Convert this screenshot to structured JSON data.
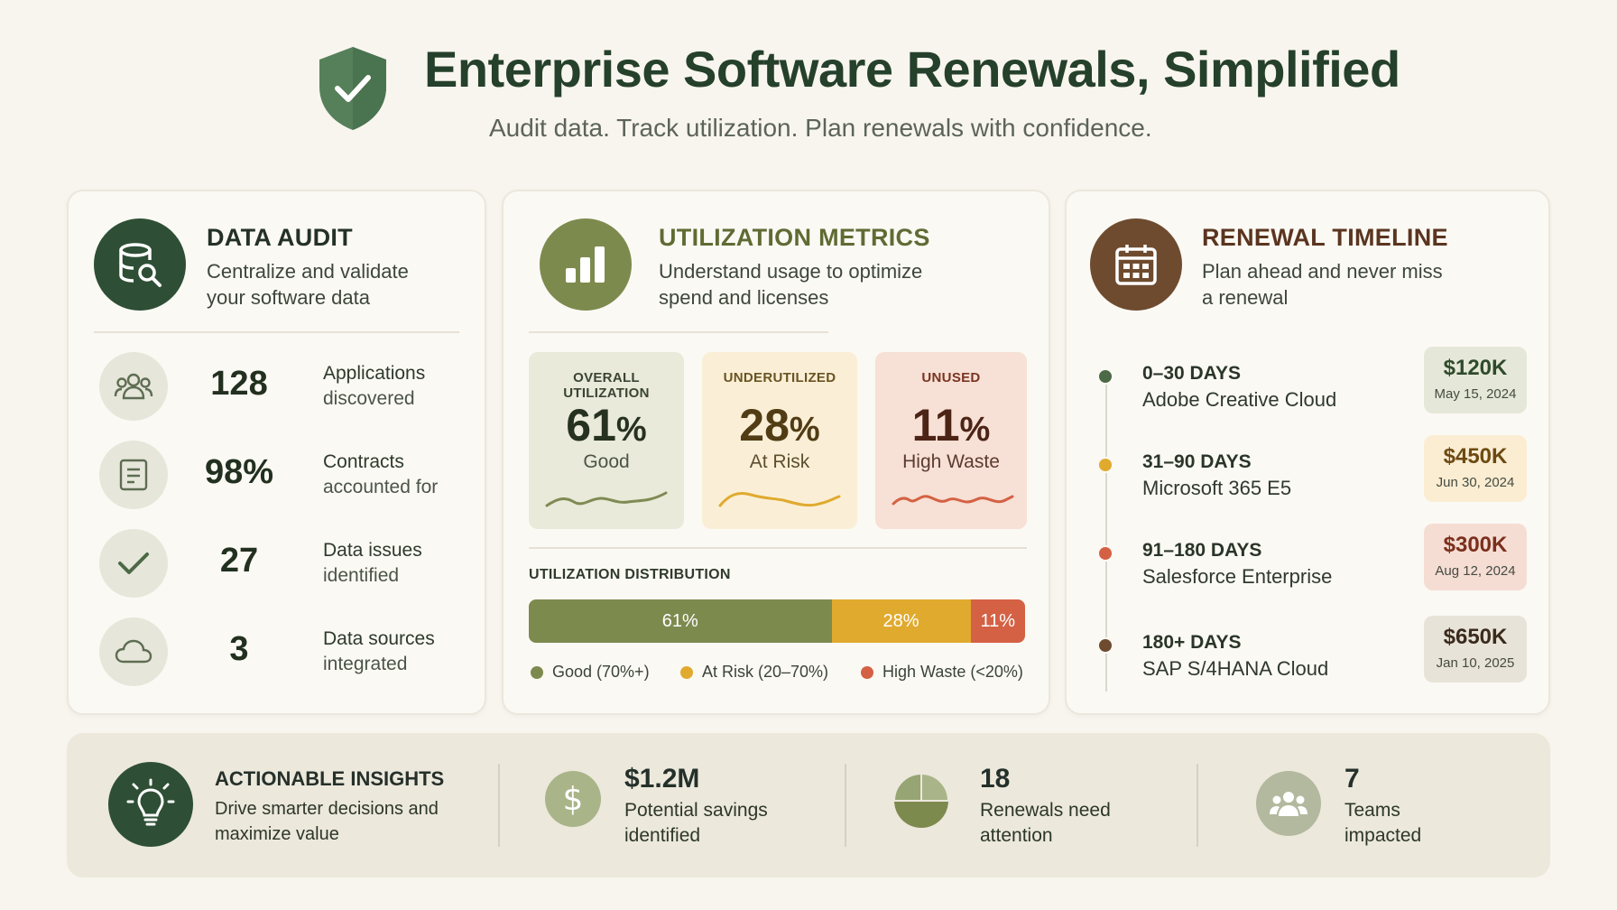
{
  "header": {
    "title": "Enterprise Software Renewals, Simplified",
    "subtitle": "Audit data. Track utilization. Plan renewals with confidence.",
    "icon": "shield-check-icon"
  },
  "colors": {
    "dark_green": "#2e4f35",
    "olive": "#7d8a4e",
    "amber": "#e0aa2e",
    "rust": "#d46144",
    "brown": "#6e4b2f"
  },
  "data_audit": {
    "title": "DATA AUDIT",
    "desc_line1": "Centralize and validate",
    "desc_line2": "your software data",
    "icon": "database-search-icon",
    "rows": [
      {
        "icon": "users-icon",
        "value": "128",
        "label_line1": "Applications",
        "label_line2": "discovered"
      },
      {
        "icon": "document-icon",
        "value": "98%",
        "label_line1": "Contracts",
        "label_line2": "accounted for"
      },
      {
        "icon": "check-icon",
        "value": "27",
        "label_line1": "Data issues",
        "label_line2": "identified"
      },
      {
        "icon": "cloud-icon",
        "value": "3",
        "label_line1": "Data sources",
        "label_line2": "integrated"
      }
    ]
  },
  "utilization": {
    "title": "UTILIZATION METRICS",
    "desc_line1": "Understand usage to optimize",
    "desc_line2": "spend and licenses",
    "icon": "bar-chart-icon",
    "tiles": [
      {
        "caption": "OVERALL UTILIZATION",
        "value": "61",
        "unit": "%",
        "status": "Good"
      },
      {
        "caption": "UNDERUTILIZED",
        "value": "28",
        "unit": "%",
        "status": "At Risk"
      },
      {
        "caption": "UNUSED",
        "value": "11",
        "unit": "%",
        "status": "High Waste"
      }
    ],
    "distribution_title": "UTILIZATION DISTRIBUTION",
    "distribution": [
      {
        "label": "61%",
        "share": 0.61
      },
      {
        "label": "28%",
        "share": 0.28
      },
      {
        "label": "11%",
        "share": 0.11
      }
    ],
    "legend": [
      "Good (70%+)",
      "At Risk (20–70%)",
      "High Waste (<20%)"
    ]
  },
  "renewal": {
    "title": "RENEWAL TIMELINE",
    "desc_line1": "Plan ahead and never miss",
    "desc_line2": "a renewal",
    "icon": "calendar-icon",
    "items": [
      {
        "range": "0–30 DAYS",
        "name": "Adobe Creative Cloud",
        "amount": "$120K",
        "date": "May 15, 2024"
      },
      {
        "range": "31–90 DAYS",
        "name": "Microsoft 365 E5",
        "amount": "$450K",
        "date": "Jun 30, 2024"
      },
      {
        "range": "91–180 DAYS",
        "name": "Salesforce Enterprise",
        "amount": "$300K",
        "date": "Aug 12, 2024"
      },
      {
        "range": "180+ DAYS",
        "name": "SAP S/4HANA Cloud",
        "amount": "$650K",
        "date": "Jan 10, 2025"
      }
    ]
  },
  "insights": {
    "title": "ACTIONABLE INSIGHTS",
    "desc_line1": "Drive smarter decisions and",
    "desc_line2": "maximize value",
    "icon": "lightbulb-icon",
    "stats": [
      {
        "icon": "dollar-icon",
        "value": "$1.2M",
        "line1": "Potential savings",
        "line2": "identified"
      },
      {
        "icon": "pie-chart-icon",
        "value": "18",
        "line1": "Renewals need",
        "line2": "attention"
      },
      {
        "icon": "team-icon",
        "value": "7",
        "line1": "Teams",
        "line2": "impacted"
      }
    ]
  }
}
